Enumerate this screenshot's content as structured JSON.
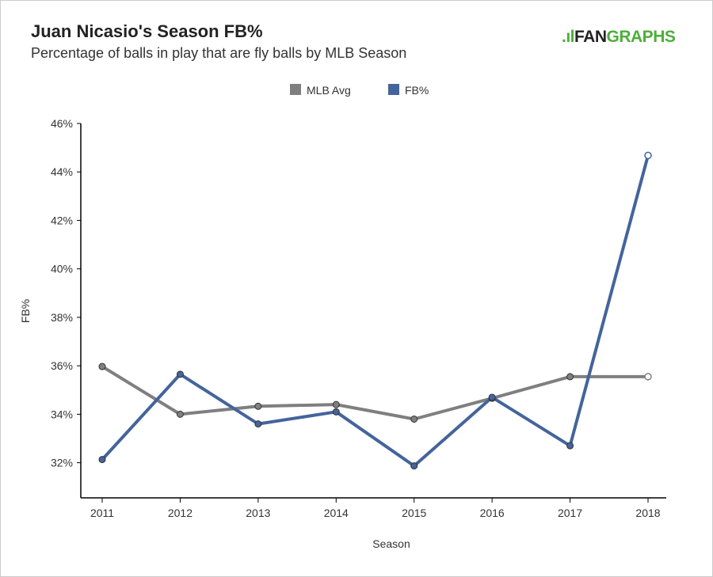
{
  "title": "Juan Nicasio's Season FB%",
  "subtitle": "Percentage of balls in play that are fly balls by MLB Season",
  "logo": {
    "part1": "FAN",
    "part2": "GRAPHS"
  },
  "chart_data": {
    "type": "line",
    "title": "Juan Nicasio's Season FB%",
    "xlabel": "Season",
    "ylabel": "FB%",
    "categories": [
      "2011",
      "2012",
      "2013",
      "2014",
      "2015",
      "2016",
      "2017",
      "2018"
    ],
    "yticks": [
      "32%",
      "34%",
      "36%",
      "38%",
      "40%",
      "42%",
      "44%",
      "46%"
    ],
    "ytick_values": [
      32,
      34,
      36,
      38,
      40,
      42,
      44,
      46
    ],
    "ylim": [
      30.55,
      46
    ],
    "legend_position": "top-center",
    "series": [
      {
        "name": "MLB Avg",
        "color": "#7f7f7f",
        "values": [
          35.97,
          34.0,
          34.33,
          34.4,
          33.8,
          34.66,
          35.55,
          35.55
        ]
      },
      {
        "name": "FB%",
        "color": "#44649b",
        "values": [
          32.13,
          35.65,
          33.6,
          34.1,
          31.87,
          34.7,
          32.7,
          44.68
        ]
      }
    ]
  }
}
